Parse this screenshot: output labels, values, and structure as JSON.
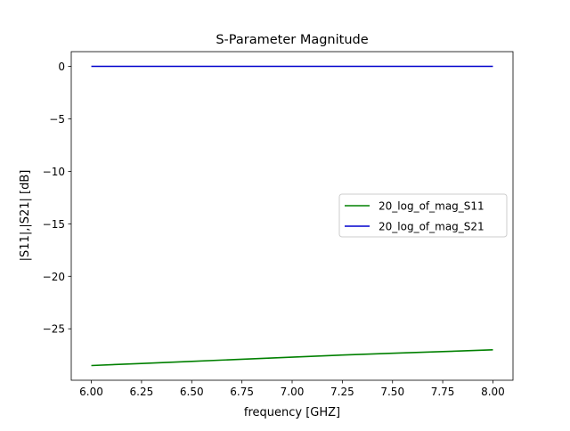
{
  "chart_data": {
    "type": "line",
    "title": "S-Parameter Magnitude",
    "xlabel": "frequency [GHZ]",
    "ylabel": "|S11|,|S21| [dB]",
    "xlim": [
      5.9,
      8.1
    ],
    "ylim": [
      -29.9,
      1.4
    ],
    "xticks": [
      6.0,
      6.25,
      6.5,
      6.75,
      7.0,
      7.25,
      7.5,
      7.75,
      8.0
    ],
    "xtick_labels": [
      "6.00",
      "6.25",
      "6.50",
      "6.75",
      "7.00",
      "7.25",
      "7.50",
      "7.75",
      "8.00"
    ],
    "yticks": [
      0,
      -5,
      -10,
      -15,
      -20,
      -25
    ],
    "ytick_labels": [
      "0",
      "−5",
      "−10",
      "−15",
      "−20",
      "−25"
    ],
    "grid": false,
    "legend_position": "center-right",
    "series": [
      {
        "name": "20_log_of_mag_S11",
        "color": "#008000",
        "x": [
          6.0,
          6.25,
          6.5,
          6.75,
          7.0,
          7.25,
          7.5,
          7.75,
          8.0
        ],
        "y": [
          -28.5,
          -28.3,
          -28.1,
          -27.9,
          -27.7,
          -27.5,
          -27.33,
          -27.17,
          -27.0
        ]
      },
      {
        "name": "20_log_of_mag_S21",
        "color": "#0000cd",
        "x": [
          6.0,
          6.25,
          6.5,
          6.75,
          7.0,
          7.25,
          7.5,
          7.75,
          8.0
        ],
        "y": [
          0,
          0,
          0,
          0,
          0,
          0,
          0,
          0,
          0
        ]
      }
    ]
  }
}
